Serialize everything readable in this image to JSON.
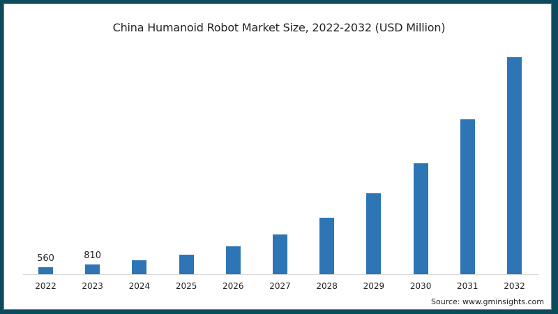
{
  "chart_data": {
    "type": "bar",
    "title": "China Humanoid Robot Market Size, 2022-2032 (USD Million)",
    "xlabel": "",
    "ylabel": "",
    "categories": [
      "2022",
      "2023",
      "2024",
      "2025",
      "2026",
      "2027",
      "2028",
      "2029",
      "2030",
      "2031",
      "2032"
    ],
    "values": [
      560,
      810,
      1150,
      1610,
      2300,
      3280,
      4660,
      6670,
      9140,
      12770,
      17880
    ],
    "data_labels": {
      "0": "560",
      "1": "810"
    },
    "grid": false,
    "legend": null,
    "bar_color": "#2e75b6",
    "ylim": [
      0,
      18000
    ]
  },
  "source": "Source: www.gminsights.com",
  "colors": {
    "border": "#0d4a5e",
    "bar": "#2e75b6",
    "background": "#ffffff"
  }
}
